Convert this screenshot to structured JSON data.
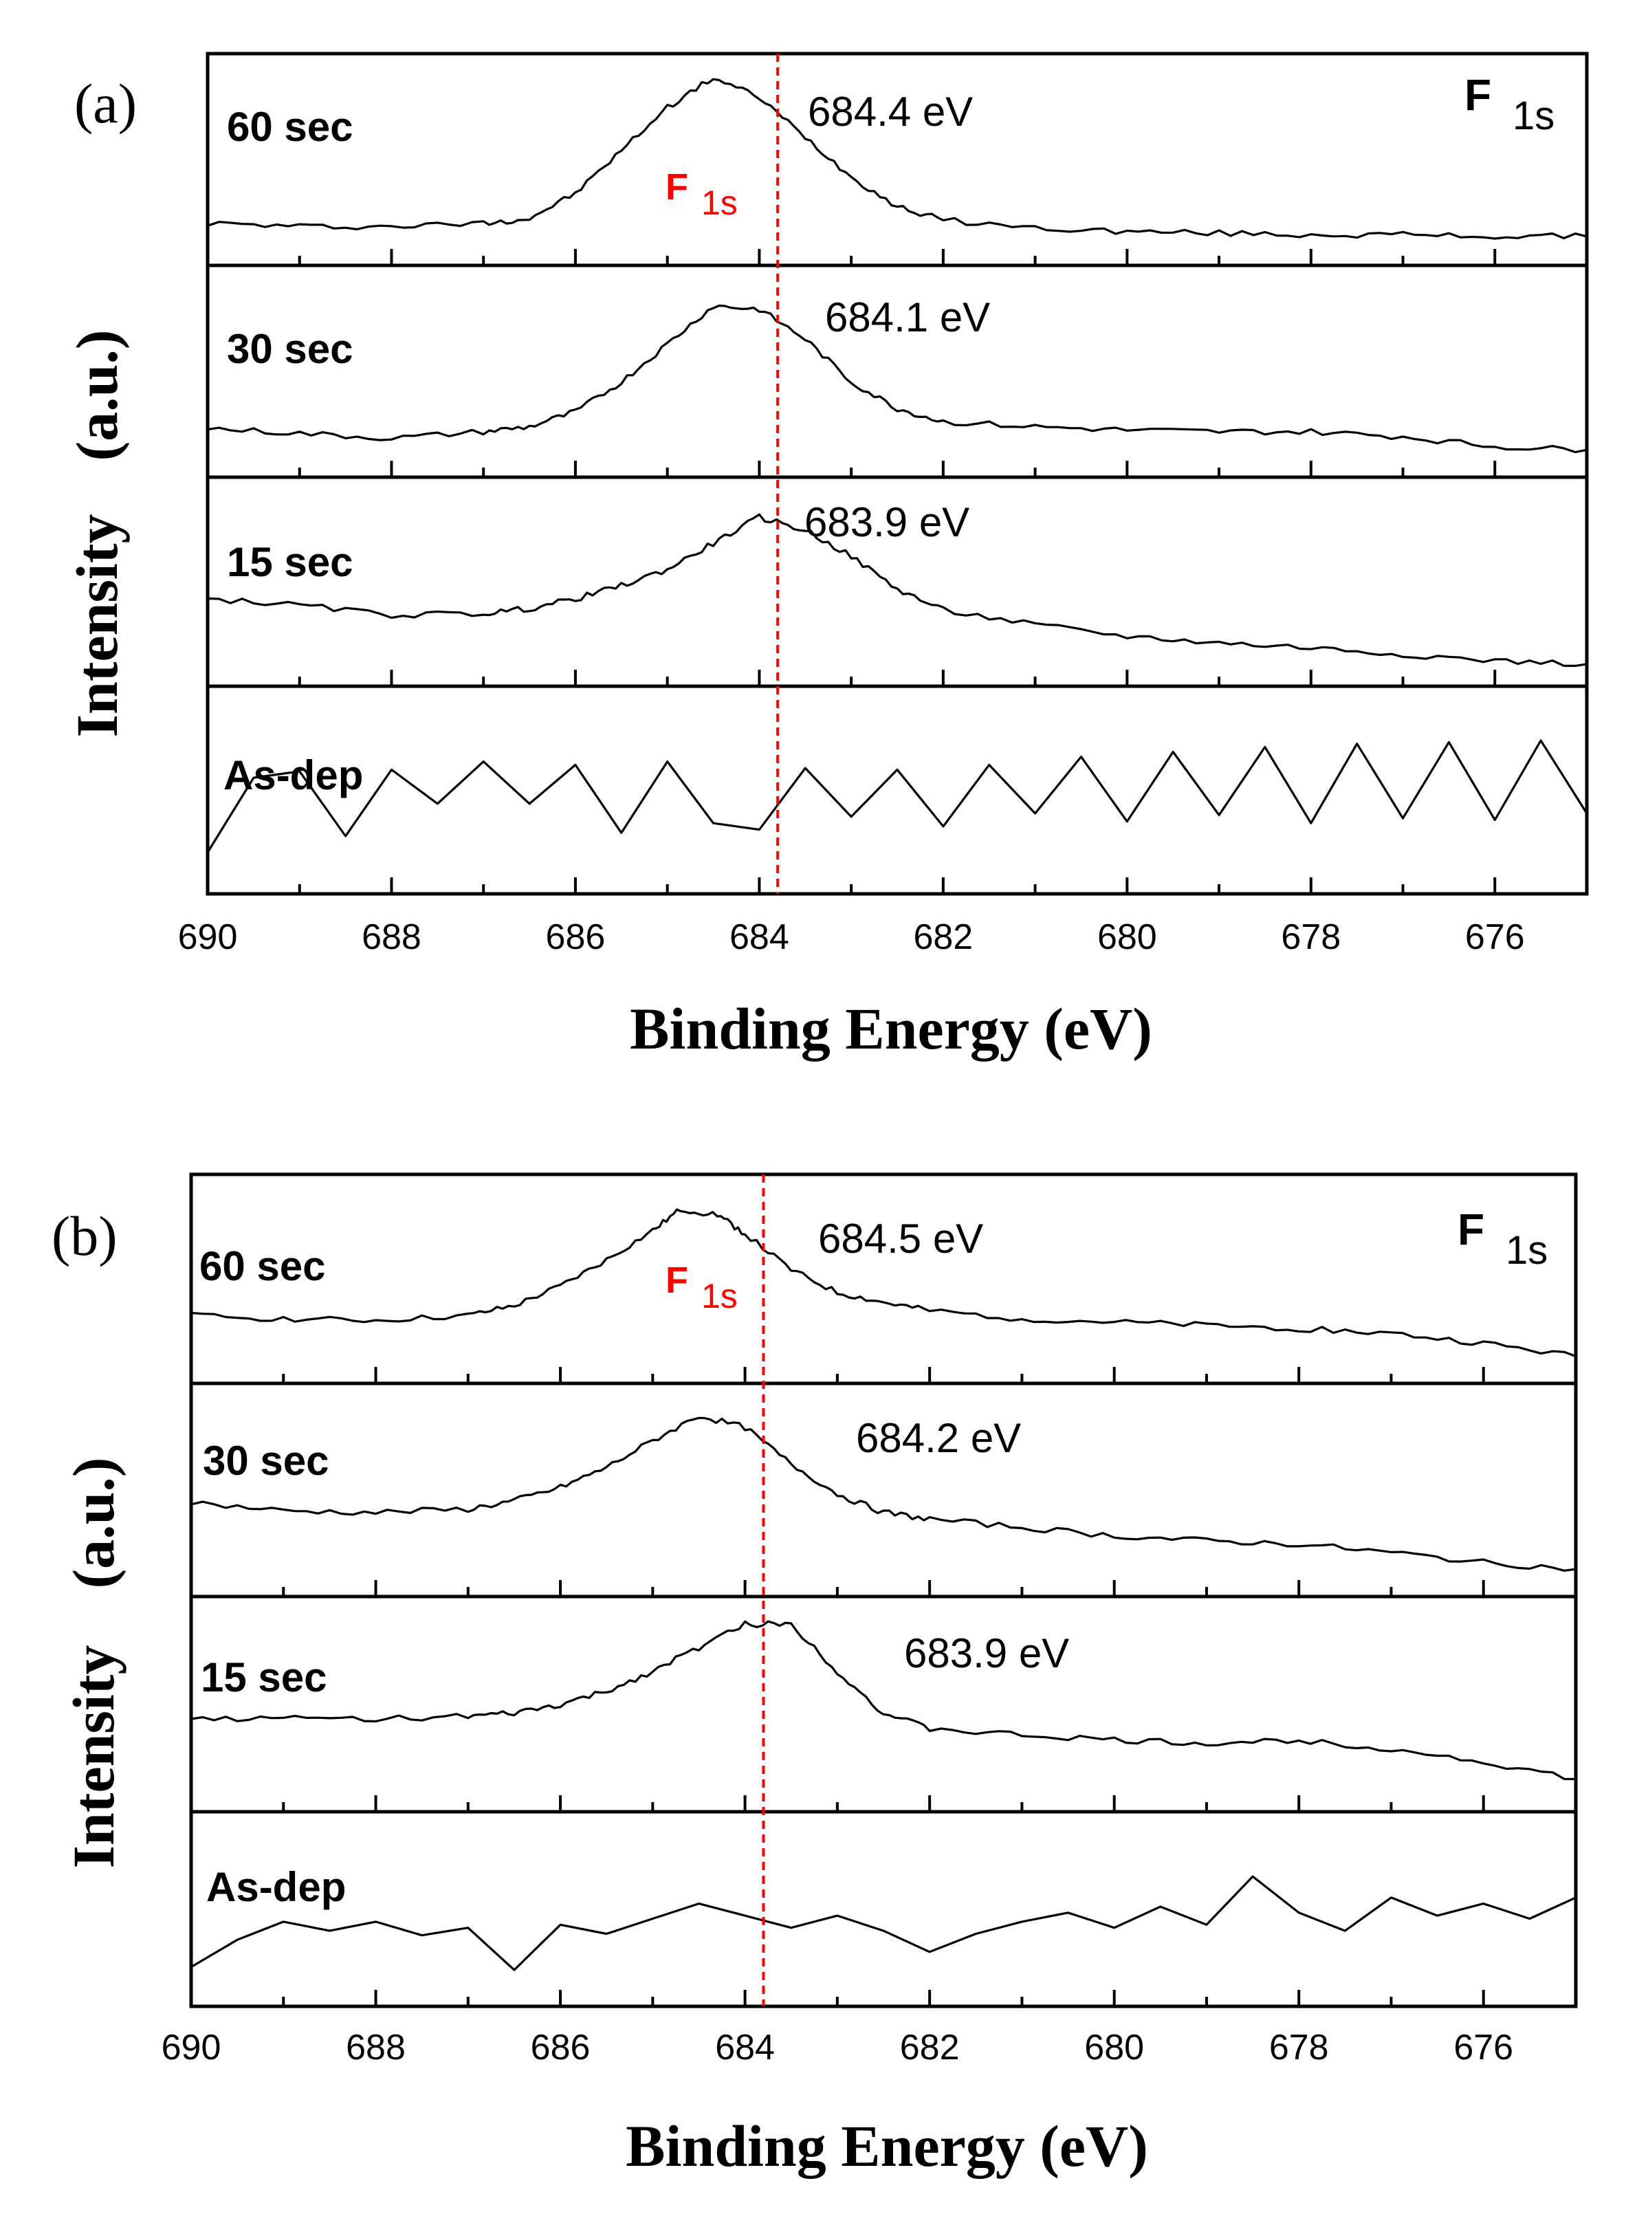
{
  "chart_data": [
    {
      "type": "line",
      "panel_label": "(a)",
      "xlabel": "Binding Energy (eV)",
      "ylabel_left": "Intensity",
      "ylabel_right": "(a.u.)",
      "xlim": [
        690,
        675
      ],
      "x_ticks": [
        "690",
        "688",
        "686",
        "684",
        "682",
        "680",
        "678",
        "676"
      ],
      "reference_line": {
        "x": 683.8,
        "label_main": "F",
        "label_sub": "1s",
        "color": "#ff0000"
      },
      "corner_label": {
        "main": "F",
        "sub": "1s"
      },
      "series": [
        {
          "name": "60 sec",
          "peak_label": "684.4 eV",
          "x": [
            690,
            689,
            688,
            687,
            686.5,
            686,
            685.5,
            685,
            684.5,
            684,
            683.5,
            683,
            682.5,
            682,
            681,
            680,
            679,
            678,
            677,
            676,
            675
          ],
          "y": [
            0.12,
            0.1,
            0.1,
            0.12,
            0.15,
            0.3,
            0.56,
            0.82,
            1.0,
            0.88,
            0.64,
            0.4,
            0.22,
            0.14,
            0.09,
            0.07,
            0.06,
            0.05,
            0.05,
            0.04,
            0.04
          ]
        },
        {
          "name": "30 sec",
          "peak_label": "684.1 eV",
          "x": [
            690,
            689,
            688,
            687,
            686.5,
            686,
            685.5,
            685,
            684.5,
            684,
            683.5,
            683,
            682.5,
            682,
            681,
            680,
            679,
            678,
            677,
            676,
            675
          ],
          "y": [
            0.16,
            0.13,
            0.1,
            0.14,
            0.17,
            0.26,
            0.44,
            0.67,
            0.9,
            0.88,
            0.7,
            0.44,
            0.28,
            0.2,
            0.17,
            0.15,
            0.14,
            0.14,
            0.11,
            0.05,
            0.03
          ]
        },
        {
          "name": "15 sec",
          "peak_label": "683.9 eV",
          "x": [
            690,
            689,
            688,
            687,
            686.5,
            686,
            685.5,
            685,
            684.5,
            684,
            683.5,
            683,
            682.5,
            682,
            681,
            680,
            679,
            678,
            677,
            676,
            675
          ],
          "y": [
            0.4,
            0.36,
            0.3,
            0.31,
            0.34,
            0.4,
            0.48,
            0.58,
            0.74,
            0.9,
            0.82,
            0.66,
            0.46,
            0.33,
            0.24,
            0.17,
            0.13,
            0.1,
            0.06,
            0.02,
            0.0
          ]
        },
        {
          "name": "As-dep",
          "peak_label": "",
          "x": [
            690,
            689.5,
            689,
            688.5,
            688,
            687.5,
            687,
            686.5,
            686,
            685.5,
            685,
            684.5,
            684,
            683.5,
            683,
            682.5,
            682,
            681.5,
            681,
            680.5,
            680,
            679.5,
            679,
            678.5,
            678,
            677.5,
            677,
            676.5,
            676,
            675.5,
            675
          ],
          "y": [
            0.12,
            0.58,
            0.62,
            0.22,
            0.63,
            0.42,
            0.68,
            0.42,
            0.66,
            0.24,
            0.68,
            0.3,
            0.26,
            0.64,
            0.34,
            0.63,
            0.28,
            0.66,
            0.36,
            0.71,
            0.31,
            0.74,
            0.35,
            0.77,
            0.3,
            0.79,
            0.33,
            0.8,
            0.32,
            0.81,
            0.36
          ]
        }
      ]
    },
    {
      "type": "line",
      "panel_label": "(b)",
      "xlabel": "Binding Energy (eV)",
      "ylabel_left": "Intensity",
      "ylabel_right": "(a.u.)",
      "xlim": [
        690,
        675
      ],
      "x_ticks": [
        "690",
        "688",
        "686",
        "684",
        "682",
        "680",
        "678",
        "676"
      ],
      "reference_line": {
        "x": 683.8,
        "label_main": "F",
        "label_sub": "1s",
        "color": "#ff0000"
      },
      "corner_label": {
        "main": "F",
        "sub": "1s"
      },
      "series": [
        {
          "name": "60 sec",
          "peak_label": "684.5 eV",
          "x": [
            690,
            689,
            688,
            687,
            686.5,
            686,
            685.5,
            685,
            684.7,
            684.3,
            684,
            683.5,
            683,
            682.5,
            682,
            681,
            680,
            679,
            678,
            677,
            676,
            675
          ],
          "y": [
            0.28,
            0.26,
            0.25,
            0.28,
            0.34,
            0.46,
            0.62,
            0.8,
            0.93,
            0.9,
            0.78,
            0.56,
            0.42,
            0.36,
            0.31,
            0.26,
            0.24,
            0.22,
            0.2,
            0.17,
            0.11,
            0.03
          ]
        },
        {
          "name": "30 sec",
          "peak_label": "684.2 eV",
          "x": [
            690,
            689,
            688,
            687,
            686.5,
            686,
            685.5,
            685,
            684.5,
            684,
            683.5,
            683,
            682.5,
            682,
            681,
            680,
            679,
            678,
            677,
            676,
            675
          ],
          "y": [
            0.43,
            0.38,
            0.37,
            0.39,
            0.44,
            0.52,
            0.64,
            0.8,
            0.95,
            0.88,
            0.66,
            0.48,
            0.37,
            0.33,
            0.28,
            0.23,
            0.2,
            0.18,
            0.13,
            0.07,
            0.03
          ]
        },
        {
          "name": "15 sec",
          "peak_label": "683.9 eV",
          "x": [
            690,
            689,
            688,
            687,
            686.5,
            686,
            685.5,
            685,
            684.5,
            684,
            683.5,
            683,
            682.5,
            682,
            681,
            680,
            679,
            678,
            677,
            676,
            675
          ],
          "y": [
            0.42,
            0.42,
            0.42,
            0.43,
            0.45,
            0.5,
            0.58,
            0.7,
            0.84,
            0.98,
            0.98,
            0.7,
            0.45,
            0.36,
            0.32,
            0.29,
            0.27,
            0.29,
            0.24,
            0.16,
            0.06
          ]
        },
        {
          "name": "As-dep",
          "peak_label": "",
          "x": [
            690,
            689.5,
            689,
            688.5,
            688,
            687.5,
            687,
            686.5,
            686,
            685.5,
            685,
            684.5,
            684,
            683.5,
            683,
            682.5,
            682,
            681.5,
            681,
            680.5,
            680,
            679.5,
            679,
            678.5,
            678,
            677.5,
            677,
            676.5,
            676,
            675.5,
            675
          ],
          "y": [
            0.12,
            0.3,
            0.42,
            0.36,
            0.42,
            0.33,
            0.38,
            0.1,
            0.4,
            0.34,
            0.44,
            0.54,
            0.46,
            0.38,
            0.46,
            0.36,
            0.22,
            0.34,
            0.42,
            0.48,
            0.38,
            0.52,
            0.4,
            0.72,
            0.48,
            0.36,
            0.58,
            0.46,
            0.54,
            0.44,
            0.58
          ]
        }
      ]
    }
  ]
}
